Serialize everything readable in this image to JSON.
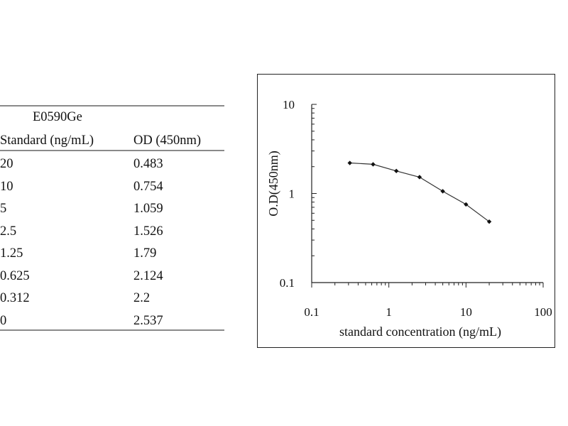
{
  "table": {
    "caption": "E0590Ge",
    "headers": [
      "Standard (ng/mL)",
      "OD (450nm)"
    ],
    "rows": [
      [
        "20",
        "0.483"
      ],
      [
        "10",
        "0.754"
      ],
      [
        "5",
        "1.059"
      ],
      [
        "2.5",
        "1.526"
      ],
      [
        "1.25",
        "1.79"
      ],
      [
        "0.625",
        "2.124"
      ],
      [
        "0.312",
        "2.2"
      ],
      [
        "0",
        "2.537"
      ]
    ]
  },
  "chart_data": {
    "type": "line",
    "x_scale": "log",
    "y_scale": "log",
    "xlabel": "standard concentration (ng/mL)",
    "ylabel": "O.D(450nm)",
    "xlim": [
      0.1,
      100
    ],
    "ylim": [
      0.1,
      10
    ],
    "x_ticks": [
      "0.1",
      "1",
      "10",
      "100"
    ],
    "y_ticks": [
      "0.1",
      "1",
      "10"
    ],
    "grid": false,
    "series": [
      {
        "x": [
          0.312,
          0.625,
          1.25,
          2.5,
          5,
          10,
          20
        ],
        "y": [
          2.2,
          2.124,
          1.79,
          1.526,
          1.059,
          0.754,
          0.483
        ]
      }
    ],
    "colors": {
      "line": "#333333",
      "marker": "#111111"
    }
  }
}
